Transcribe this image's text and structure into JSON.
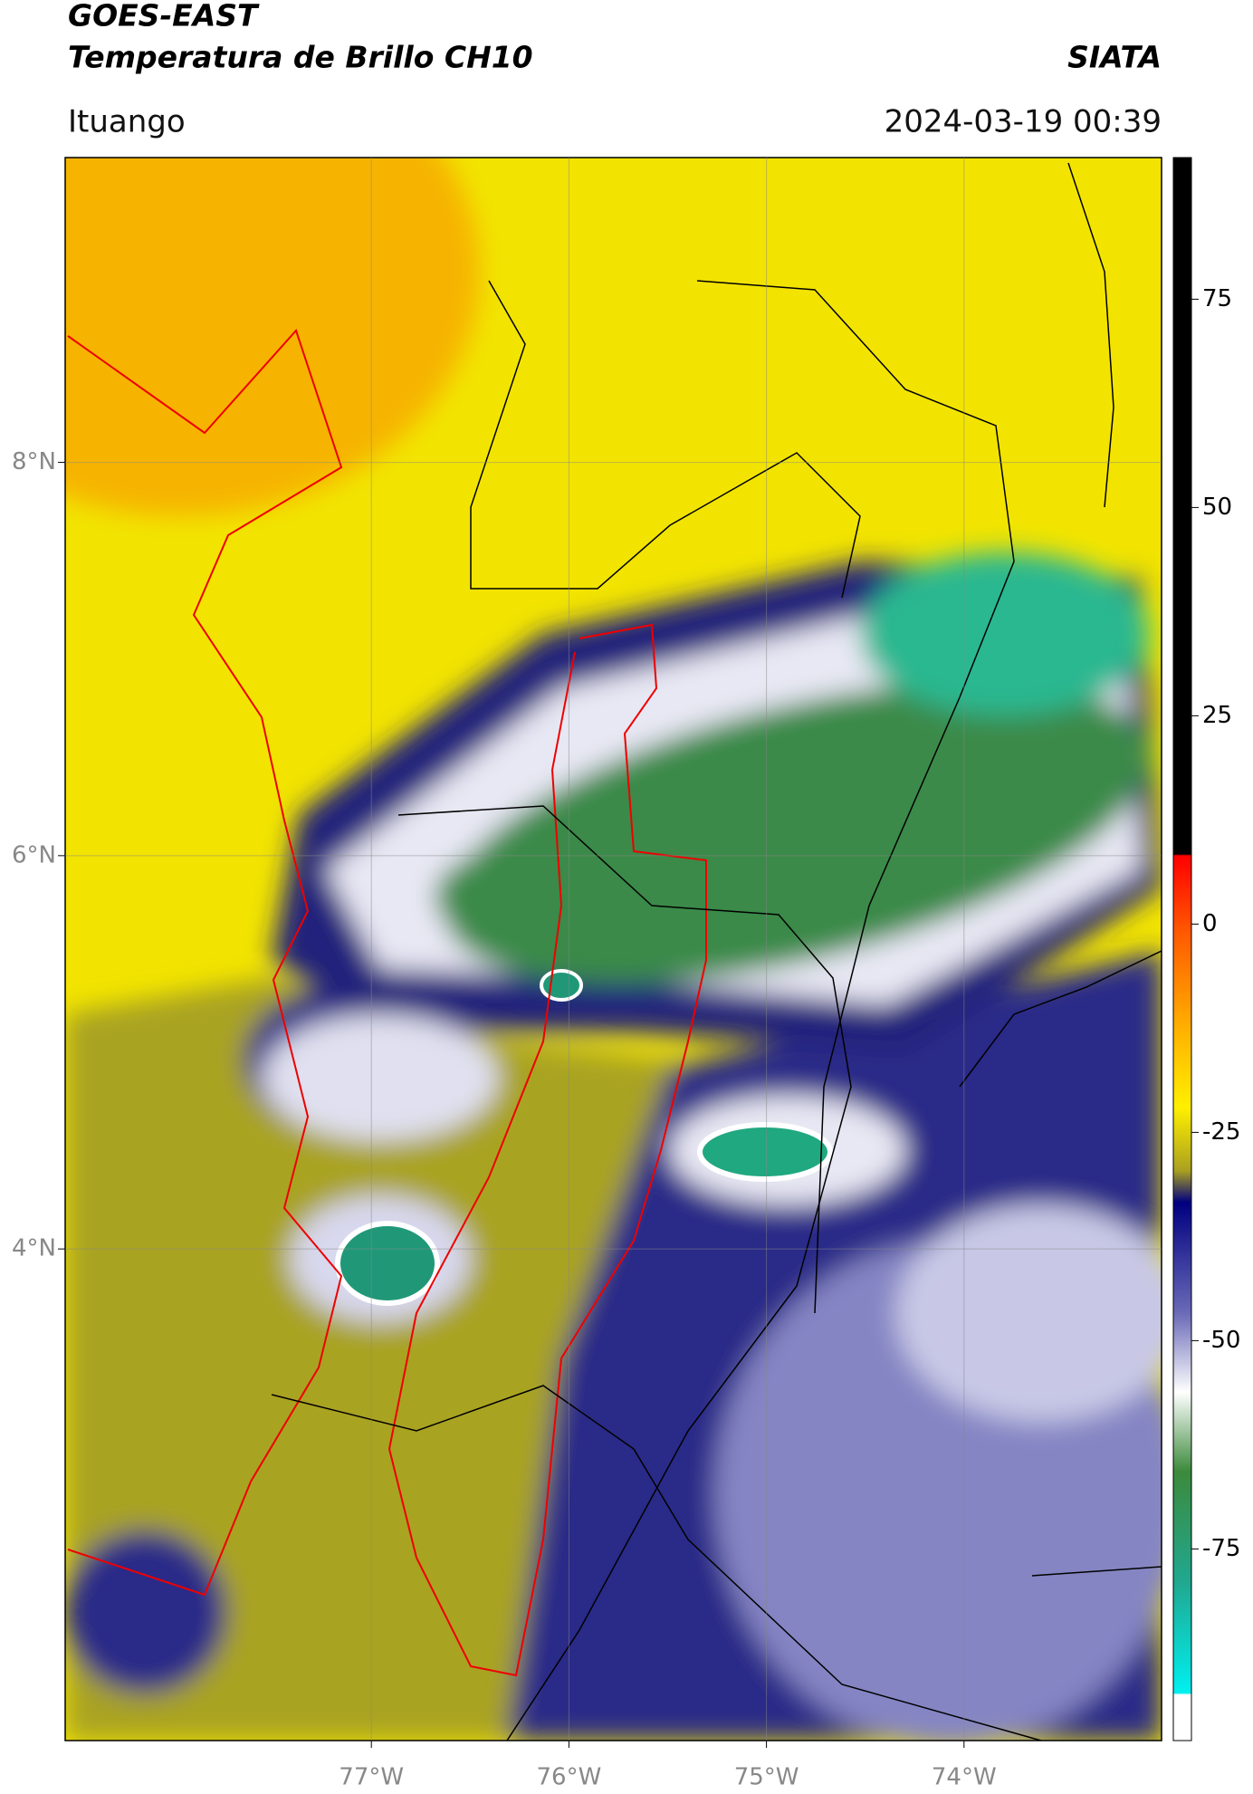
{
  "header": {
    "title": "GOES-EAST",
    "subtitle": "Temperatura de Brillo CH10",
    "brand": "SIATA",
    "location": "Ituango",
    "datetime": "2024-03-19 00:39"
  },
  "map": {
    "xlim": [
      -78.55,
      -73.0
    ],
    "ylim": [
      1.5,
      9.55
    ],
    "xticks": [
      {
        "value": -77,
        "label": "77°W"
      },
      {
        "value": -76,
        "label": "76°W"
      },
      {
        "value": -75,
        "label": "75°W"
      },
      {
        "value": -74,
        "label": "74°W"
      }
    ],
    "yticks": [
      {
        "value": 8,
        "label": "8°N"
      },
      {
        "value": 6,
        "label": "6°N"
      },
      {
        "value": 4,
        "label": "4°N"
      }
    ],
    "grid": true
  },
  "colorbar": {
    "clim": [
      -98,
      92
    ],
    "ticks": [
      75,
      50,
      25,
      0,
      -25,
      -50,
      -75
    ]
  }
}
